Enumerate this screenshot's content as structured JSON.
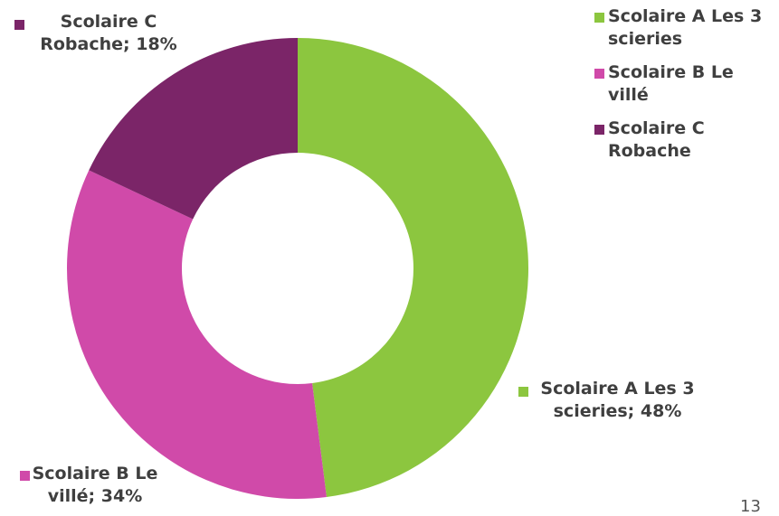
{
  "chart_data": {
    "type": "donut",
    "categories": [
      "Scolaire A Les 3 scieries",
      "Scolaire B Le villé",
      "Scolaire C Robache"
    ],
    "values": [
      48,
      34,
      18
    ],
    "value_labels": [
      "Scolaire A Les 3 scieries; 48%",
      "Scolaire B Le villé; 34%",
      "Scolaire C Robache; 18%"
    ],
    "colors": [
      "#8cc63f",
      "#d04aa9",
      "#7b2568"
    ],
    "legend": "top-right"
  },
  "page_number": "13"
}
